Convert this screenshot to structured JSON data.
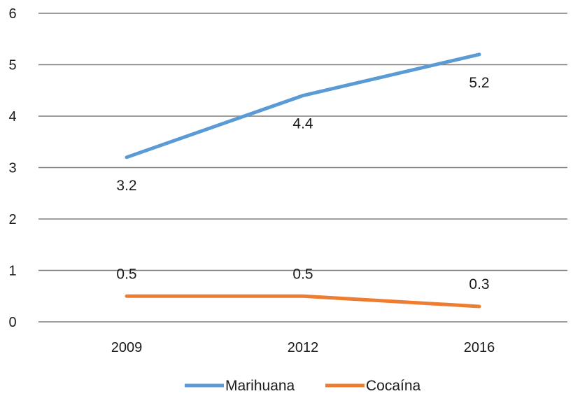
{
  "chart_data": {
    "type": "line",
    "categories": [
      "2009",
      "2012",
      "2016"
    ],
    "series": [
      {
        "name": "Marihuana",
        "values": [
          3.2,
          4.4,
          5.2
        ],
        "color": "#5b9bd5",
        "labels": [
          "3.2",
          "4.4",
          "5.2"
        ]
      },
      {
        "name": "Cocaína",
        "values": [
          0.5,
          0.5,
          0.3
        ],
        "color": "#ed7d31",
        "labels": [
          "0.5",
          "0.5",
          "0.3"
        ]
      }
    ],
    "ylim": [
      0,
      6
    ],
    "yticks": [
      "0",
      "1",
      "2",
      "3",
      "4",
      "5",
      "6"
    ],
    "grid": true,
    "legend": "bottom-center",
    "title": "",
    "xlabel": "",
    "ylabel": ""
  }
}
